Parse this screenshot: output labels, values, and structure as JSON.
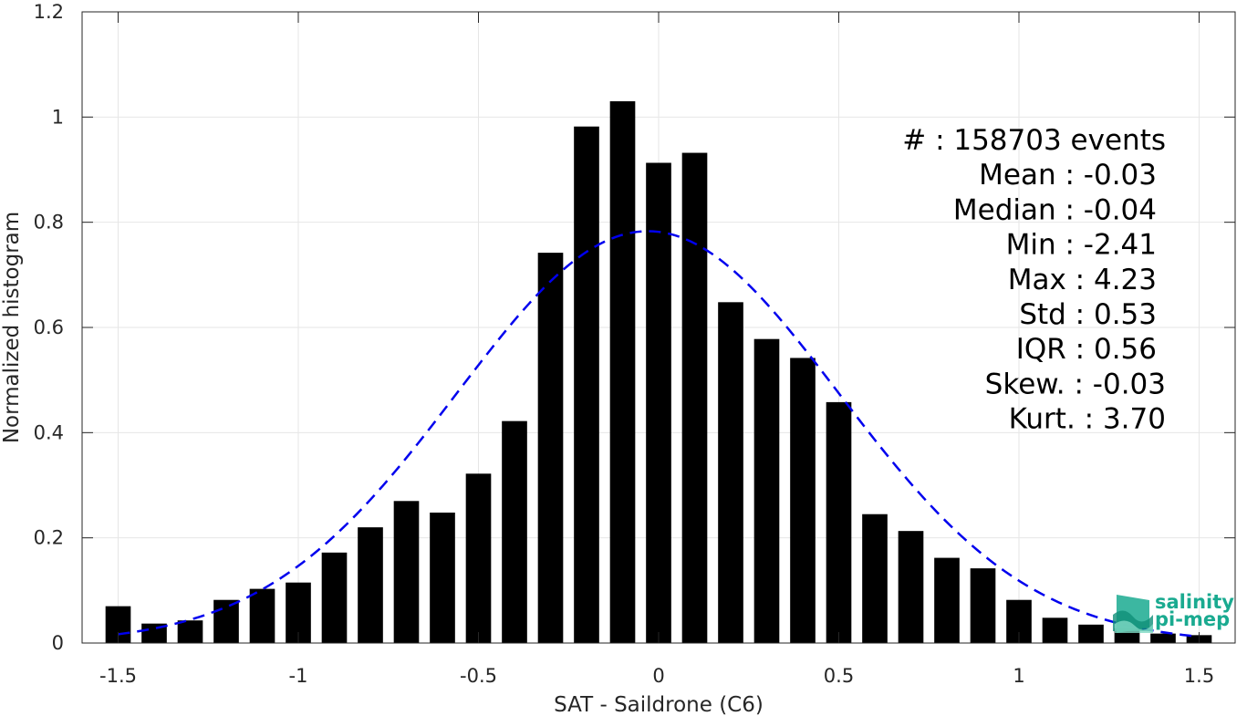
{
  "chart_data": {
    "type": "bar",
    "xlabel": "SAT - Saildrone (C6)",
    "ylabel": "Normalized histogram",
    "xlim": [
      -1.6,
      1.6
    ],
    "ylim": [
      0,
      1.2
    ],
    "xticks": [
      -1.5,
      -1,
      -0.5,
      0,
      0.5,
      1,
      1.5
    ],
    "xtick_labels": [
      "-1.5",
      "-1",
      "-0.5",
      "0",
      "0.5",
      "1",
      "1.5"
    ],
    "yticks": [
      0,
      0.2,
      0.4,
      0.6,
      0.8,
      1,
      1.2
    ],
    "ytick_labels": [
      "0",
      "0.2",
      "0.4",
      "0.6",
      "0.8",
      "1",
      "1.2"
    ],
    "grid": true,
    "bar_width": 0.07,
    "bars": {
      "x": [
        -1.5,
        -1.4,
        -1.3,
        -1.2,
        -1.1,
        -1.0,
        -0.9,
        -0.8,
        -0.7,
        -0.6,
        -0.5,
        -0.4,
        -0.3,
        -0.2,
        -0.1,
        0.0,
        0.1,
        0.2,
        0.3,
        0.4,
        0.5,
        0.6,
        0.7,
        0.8,
        0.9,
        1.0,
        1.1,
        1.2,
        1.3,
        1.4,
        1.5
      ],
      "values": [
        0.07,
        0.037,
        0.043,
        0.082,
        0.103,
        0.115,
        0.172,
        0.22,
        0.27,
        0.248,
        0.322,
        0.422,
        0.742,
        0.982,
        1.03,
        0.913,
        0.932,
        0.648,
        0.578,
        0.542,
        0.458,
        0.245,
        0.213,
        0.162,
        0.142,
        0.082,
        0.048,
        0.035,
        0.028,
        0.018,
        0.015
      ],
      "color": "#000000"
    },
    "fit": {
      "type": "gaussian",
      "mean": -0.03,
      "std": 0.53,
      "peak": 0.783,
      "x_range": [
        -1.5,
        1.5
      ],
      "color": "#0000ee",
      "style": "dashed"
    },
    "stats": [
      "#  : 158703 events",
      "Mean : -0.03",
      "Median : -0.04",
      "Min : -2.41",
      "Max : 4.23",
      "Std : 0.53",
      "IQR : 0.56",
      "Skew. : -0.03",
      "Kurt. : 3.70"
    ]
  },
  "logo": {
    "line1": "salinity",
    "line2": "pi-mep",
    "color": "#1aaa90"
  }
}
